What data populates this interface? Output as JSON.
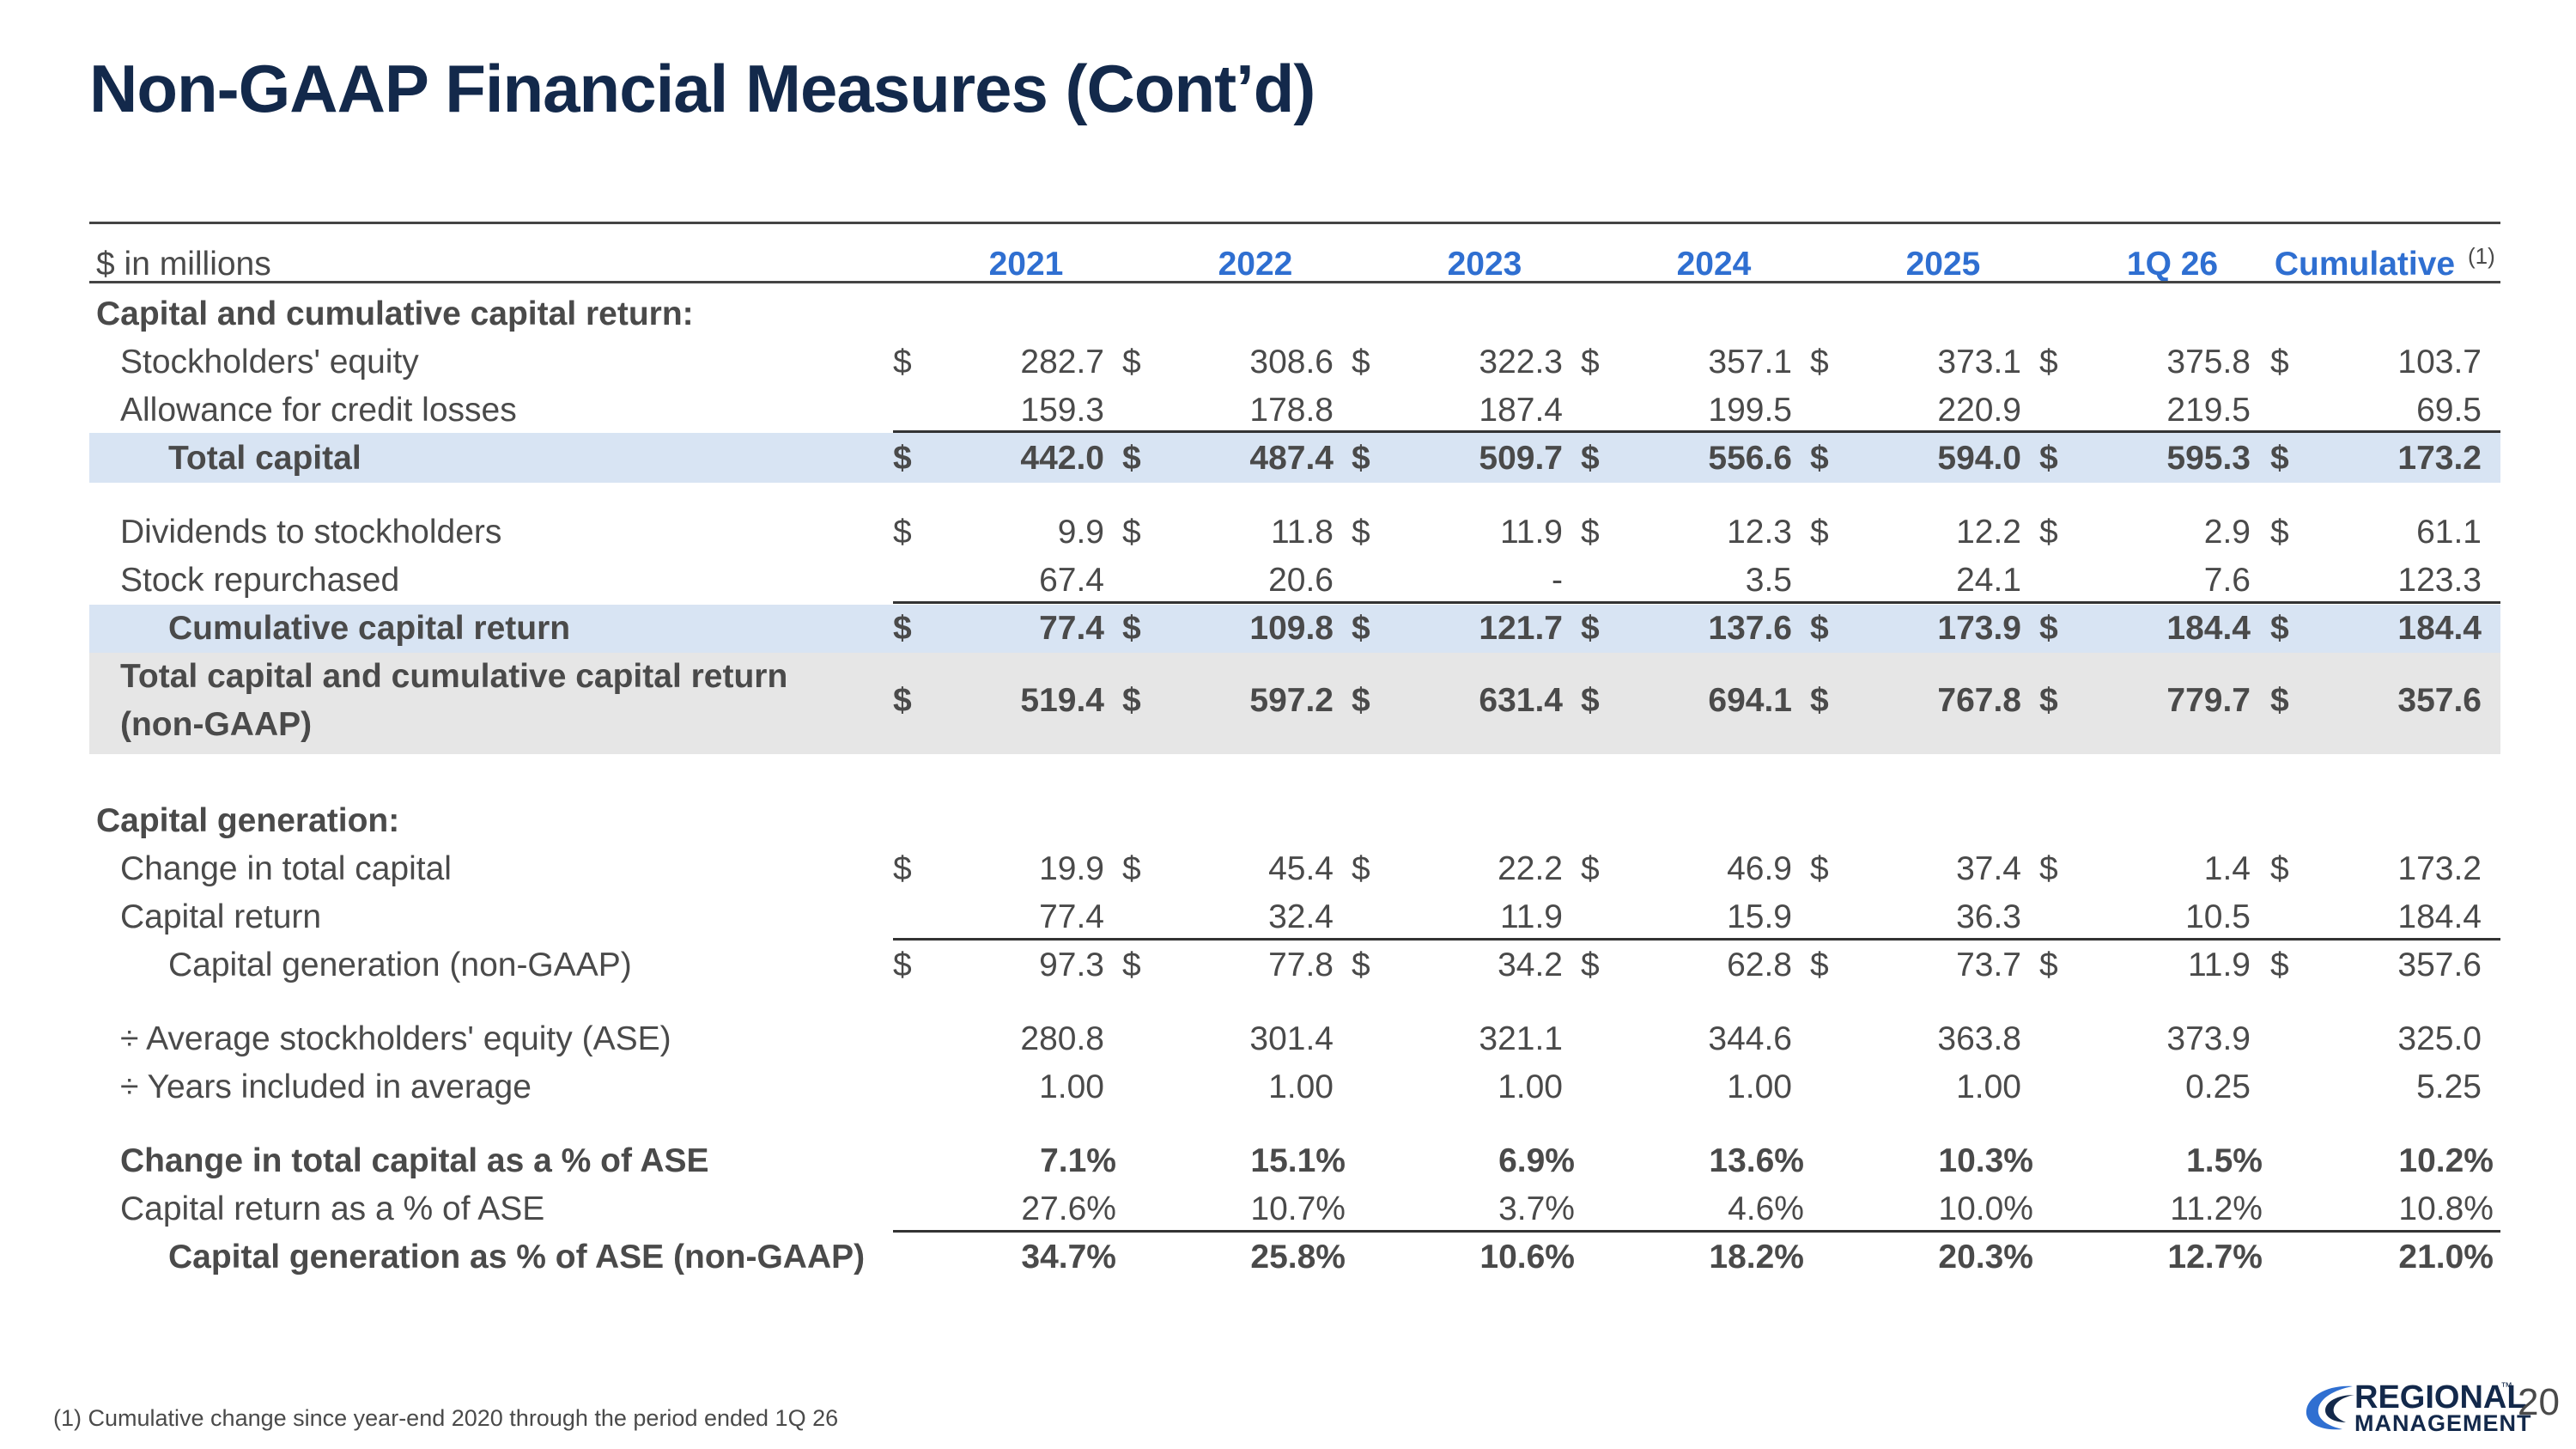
{
  "title": "Non-GAAP Financial Measures (Cont’d)",
  "header": {
    "unit_label": "$ in millions",
    "columns": [
      "2021",
      "2022",
      "2023",
      "2024",
      "2025",
      "1Q 26",
      "Cumulative"
    ],
    "cumulative_note": "(1)"
  },
  "sections": {
    "capital_title": "Capital and cumulative capital return:",
    "generation_title": "Capital generation:"
  },
  "rows": {
    "equity": {
      "label": "Stockholders' equity",
      "cur": [
        "$",
        "$",
        "$",
        "$",
        "$",
        "$",
        "$"
      ],
      "vals": [
        "282.7",
        "308.6",
        "322.3",
        "357.1",
        "373.1",
        "375.8",
        "103.7"
      ]
    },
    "allowance": {
      "label": "Allowance for credit losses",
      "cur": [
        "",
        "",
        "",
        "",
        "",
        "",
        ""
      ],
      "vals": [
        "159.3",
        "178.8",
        "187.4",
        "199.5",
        "220.9",
        "219.5",
        "69.5"
      ]
    },
    "total_capital": {
      "label": "Total capital",
      "cur": [
        "$",
        "$",
        "$",
        "$",
        "$",
        "$",
        "$"
      ],
      "vals": [
        "442.0",
        "487.4",
        "509.7",
        "556.6",
        "594.0",
        "595.3",
        "173.2"
      ]
    },
    "dividends": {
      "label": "Dividends to stockholders",
      "cur": [
        "$",
        "$",
        "$",
        "$",
        "$",
        "$",
        "$"
      ],
      "vals": [
        "9.9",
        "11.8",
        "11.9",
        "12.3",
        "12.2",
        "2.9",
        "61.1"
      ]
    },
    "repurchased": {
      "label": "Stock repurchased",
      "cur": [
        "",
        "",
        "",
        "",
        "",
        "",
        ""
      ],
      "vals": [
        "67.4",
        "20.6",
        "-",
        "3.5",
        "24.1",
        "7.6",
        "123.3"
      ]
    },
    "cum_return": {
      "label": "Cumulative capital return",
      "cur": [
        "$",
        "$",
        "$",
        "$",
        "$",
        "$",
        "$"
      ],
      "vals": [
        "77.4",
        "109.8",
        "121.7",
        "137.6",
        "173.9",
        "184.4",
        "184.4"
      ]
    },
    "total_and_return": {
      "label_line1": "Total capital and cumulative capital return",
      "label_line2": "(non-GAAP)",
      "cur": [
        "$",
        "$",
        "$",
        "$",
        "$",
        "$",
        "$"
      ],
      "vals": [
        "519.4",
        "597.2",
        "631.4",
        "694.1",
        "767.8",
        "779.7",
        "357.6"
      ]
    },
    "change_total": {
      "label": "Change in total capital",
      "cur": [
        "$",
        "$",
        "$",
        "$",
        "$",
        "$",
        "$"
      ],
      "vals": [
        "19.9",
        "45.4",
        "22.2",
        "46.9",
        "37.4",
        "1.4",
        "173.2"
      ]
    },
    "capital_return": {
      "label": "Capital return",
      "cur": [
        "",
        "",
        "",
        "",
        "",
        "",
        ""
      ],
      "vals": [
        "77.4",
        "32.4",
        "11.9",
        "15.9",
        "36.3",
        "10.5",
        "184.4"
      ]
    },
    "cap_gen": {
      "label": "Capital generation (non-GAAP)",
      "cur": [
        "$",
        "$",
        "$",
        "$",
        "$",
        "$",
        "$"
      ],
      "vals": [
        "97.3",
        "77.8",
        "34.2",
        "62.8",
        "73.7",
        "11.9",
        "357.6"
      ]
    },
    "ase": {
      "label": "÷ Average stockholders' equity (ASE)",
      "vals": [
        "280.8",
        "301.4",
        "321.1",
        "344.6",
        "363.8",
        "373.9",
        "325.0"
      ]
    },
    "years": {
      "label": "÷ Years included in average",
      "vals": [
        "1.00",
        "1.00",
        "1.00",
        "1.00",
        "1.00",
        "0.25",
        "5.25"
      ]
    },
    "pct_change": {
      "label": "Change in total capital as a % of ASE",
      "vals": [
        "7.1%",
        "15.1%",
        "6.9%",
        "13.6%",
        "10.3%",
        "1.5%",
        "10.2%"
      ]
    },
    "pct_return": {
      "label": "Capital return as a % of ASE",
      "vals": [
        "27.6%",
        "10.7%",
        "3.7%",
        "4.6%",
        "10.0%",
        "11.2%",
        "10.8%"
      ]
    },
    "pct_gen": {
      "label": "Capital generation as % of ASE (non-GAAP)",
      "vals": [
        "34.7%",
        "25.8%",
        "10.6%",
        "18.2%",
        "20.3%",
        "12.7%",
        "21.0%"
      ]
    }
  },
  "footnote": "(1) Cumulative change since year-end 2020 through the period ended 1Q 26",
  "logo": {
    "line1": "REGIONAL",
    "line2": "MANAGEMENT",
    "tm": "™"
  },
  "page_number": "20",
  "colors": {
    "title": "#13294b",
    "header_accent": "#2f6fd1",
    "band_blue": "#d8e4f3",
    "band_gray": "#e6e6e6"
  }
}
